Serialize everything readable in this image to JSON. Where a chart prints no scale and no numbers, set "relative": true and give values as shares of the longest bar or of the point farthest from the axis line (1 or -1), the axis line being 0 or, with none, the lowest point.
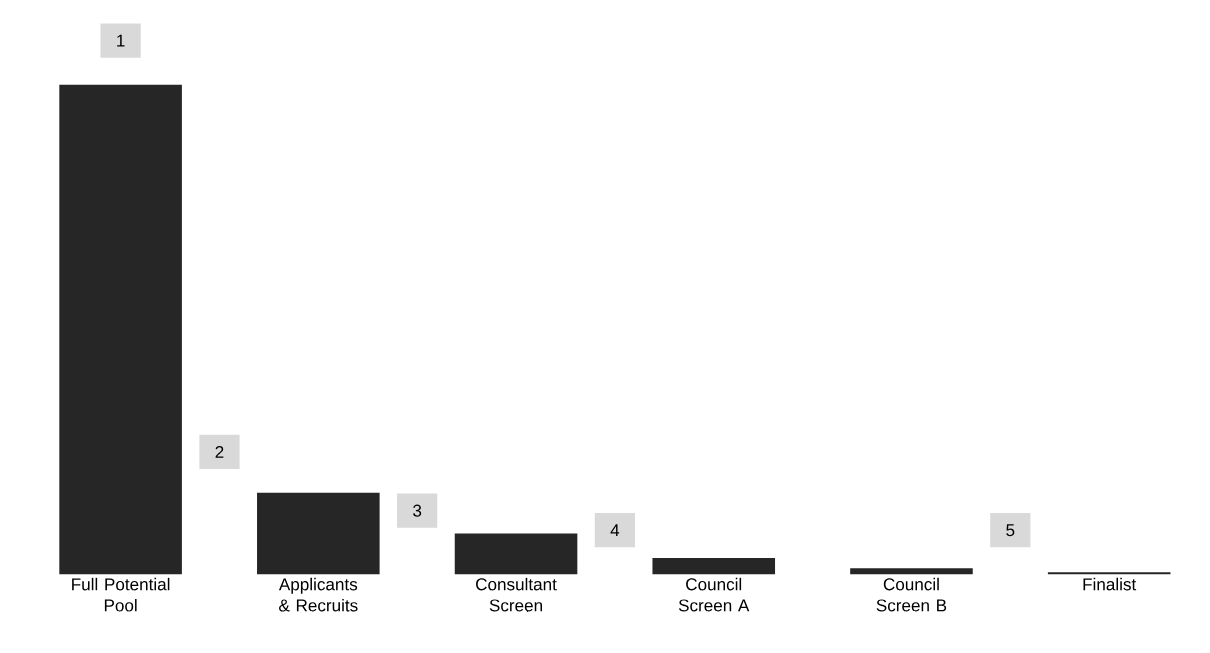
{
  "chart_data": {
    "type": "bar",
    "relative": true,
    "categories": [
      "Full Potential Pool",
      "Applicants & Recruits",
      "Consultant Screen",
      "Council Screen A",
      "Council Screen B",
      "Finalist"
    ],
    "values": [
      1,
      0.1667,
      0.0833,
      0.0333,
      0.0125,
      0.0042
    ],
    "color": "#262626",
    "annotations": [
      "1",
      "2",
      "3",
      "4",
      "5"
    ]
  }
}
